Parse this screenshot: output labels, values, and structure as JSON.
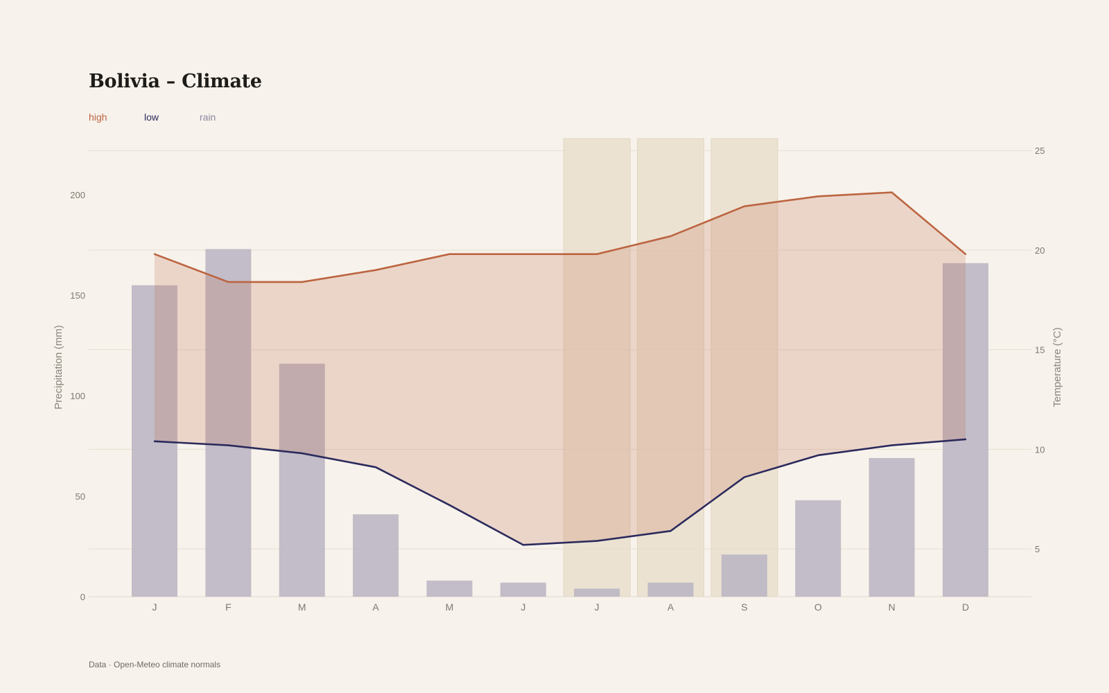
{
  "chart_data": {
    "type": "bar+line",
    "title": "Bolivia – Climate",
    "categories": [
      "J",
      "F",
      "M",
      "A",
      "M",
      "J",
      "J",
      "A",
      "S",
      "O",
      "N",
      "D"
    ],
    "highlight_months": [
      6,
      7,
      8
    ],
    "bars": {
      "name": "rain",
      "axis": "left",
      "values": [
        155,
        173,
        116,
        41,
        8,
        7,
        4,
        7,
        21,
        48,
        69,
        166
      ],
      "color": "#b8b4c2"
    },
    "series": [
      {
        "name": "high",
        "axis": "right",
        "values": [
          19.8,
          18.4,
          18.4,
          19.0,
          19.8,
          19.8,
          19.8,
          20.7,
          22.2,
          22.7,
          22.9,
          19.8
        ],
        "color": "#bc6440"
      },
      {
        "name": "low",
        "axis": "right",
        "values": [
          10.4,
          10.2,
          9.8,
          9.1,
          7.2,
          5.2,
          5.4,
          5.9,
          8.6,
          9.7,
          10.2,
          10.5
        ],
        "color": "#2b2a5c"
      }
    ],
    "left_axis": {
      "label": "Precipitation (mm)",
      "ylim": [
        0,
        228
      ],
      "ticks": [
        0,
        50,
        100,
        150,
        200
      ]
    },
    "right_axis": {
      "label": "Temperature (°C)",
      "ylim": [
        2.6,
        25.6
      ],
      "ticks": [
        5,
        10,
        15,
        20,
        25
      ]
    },
    "legend": [
      "high",
      "low",
      "rain"
    ],
    "legend_placement": "top-left",
    "grid": true,
    "band_color": "#bc6440",
    "highlight_color": "#ece2d2",
    "source": "Data · Open-Meteo climate normals"
  }
}
